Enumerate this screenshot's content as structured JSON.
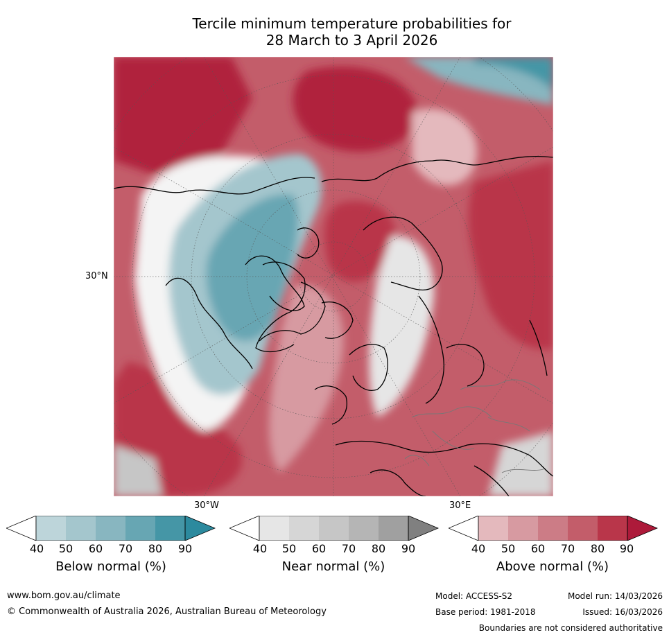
{
  "title": {
    "line1": "Tercile minimum temperature probabilities for",
    "line2": "28 March to 3 April 2026"
  },
  "map_labels": {
    "lat_30n": "30°N",
    "lon_30w": "30°W",
    "lon_30e": "30°E"
  },
  "colorbars": [
    {
      "title": "Below normal (%)",
      "ticks": [
        "40",
        "50",
        "60",
        "70",
        "80",
        "90"
      ],
      "colors": [
        "#bdd5da",
        "#a4c6cd",
        "#88b6c0",
        "#67a6b3",
        "#4596a6",
        "#2c8a9e"
      ]
    },
    {
      "title": "Near normal (%)",
      "ticks": [
        "40",
        "50",
        "60",
        "70",
        "80",
        "90"
      ],
      "colors": [
        "#e6e6e6",
        "#d6d6d6",
        "#c6c6c6",
        "#b5b5b5",
        "#a0a0a0",
        "#808080"
      ]
    },
    {
      "title": "Above normal (%)",
      "ticks": [
        "40",
        "50",
        "60",
        "70",
        "80",
        "90"
      ],
      "colors": [
        "#e4b9bd",
        "#d79aa1",
        "#cc7c86",
        "#c35d6a",
        "#b9364a",
        "#ad1a3a"
      ]
    }
  ],
  "footer": {
    "website": "www.bom.gov.au/climate",
    "copyright": "© Commonwealth of Australia 2026, Australian Bureau of Meteorology",
    "model": "Model: ACCESS-S2",
    "base_period": "Base period: 1981-2018",
    "model_run": "Model run: 14/03/2026",
    "issued": "Issued: 16/03/2026",
    "boundaries_note": "Boundaries are not considered authoritative"
  }
}
